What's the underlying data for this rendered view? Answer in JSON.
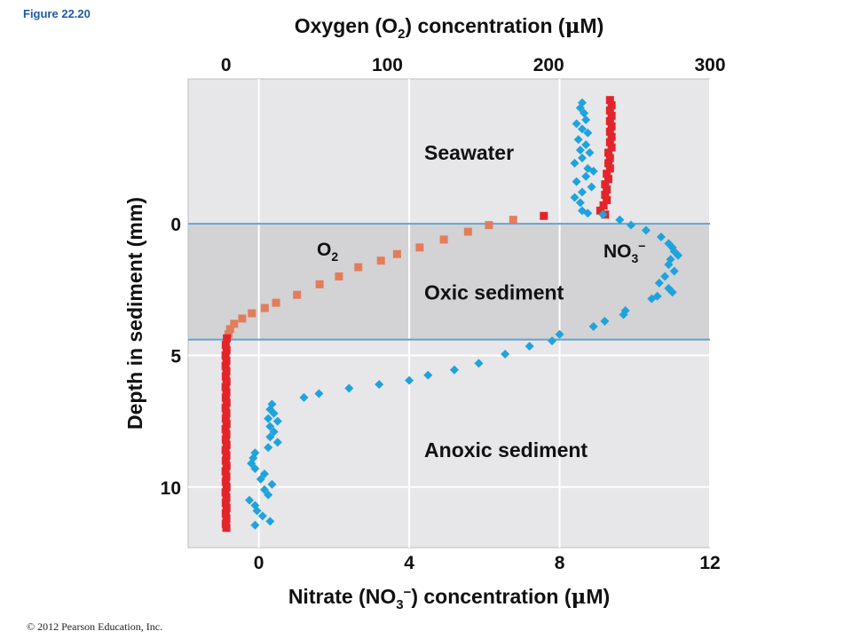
{
  "figure_label": "Figure 22.20",
  "copyright": "© 2012 Pearson Education, Inc.",
  "colors": {
    "o2": "#e3242b",
    "o2_transition": "#e27d5c",
    "nitrate": "#1fa3dc",
    "seawater_bg": "#e7e6e8",
    "oxic_bg": "#d3d2d4",
    "boundary_line": "#5fa4cd"
  },
  "chart_data": {
    "type": "scatter",
    "x_top_axis": {
      "label_main": "Oxygen (O",
      "label_sub": "2",
      "label_tail": ") concentration (",
      "label_mu": "μ",
      "label_unit": "M)",
      "range": [
        -23.5,
        300
      ],
      "ticks": [
        "0",
        "100",
        "200",
        "300"
      ]
    },
    "x_bottom_axis": {
      "label_main": "Nitrate (NO",
      "label_sub": "3",
      "label_sup": "−",
      "label_tail": ") concentration (",
      "label_mu": "μ",
      "label_unit": "M)",
      "range": [
        -1.88,
        12
      ],
      "ticks": [
        "0",
        "4",
        "8",
        "12"
      ]
    },
    "y_axis": {
      "label": "Depth in sediment (mm)",
      "range": [
        -5.5,
        12.3
      ],
      "inverted": true,
      "ticks": [
        "0",
        "5",
        "10"
      ]
    },
    "regions": [
      {
        "name": "Seawater",
        "label_depth": -2.7,
        "label_nitrate": 4.4
      },
      {
        "name": "Oxic sediment",
        "label_depth": 2.6,
        "label_nitrate": 4.4
      },
      {
        "name": "Anoxic sediment",
        "label_depth": 8.6,
        "label_nitrate": 4.4
      }
    ],
    "boundaries_depth": [
      0,
      4.4
    ],
    "series_labels": {
      "o2": {
        "main": "O",
        "sub": "2"
      },
      "no3": {
        "main": "NO",
        "sub": "3",
        "sup": "−"
      }
    },
    "o2_points": [
      [
        238,
        -4.7
      ],
      [
        239,
        -4.5
      ],
      [
        238,
        -4.3
      ],
      [
        239,
        -4.1
      ],
      [
        238,
        -3.9
      ],
      [
        239,
        -3.7
      ],
      [
        238,
        -3.5
      ],
      [
        239,
        -3.3
      ],
      [
        238,
        -3.1
      ],
      [
        239,
        -2.9
      ],
      [
        237,
        -2.7
      ],
      [
        238,
        -2.5
      ],
      [
        237,
        -2.3
      ],
      [
        238,
        -2.1
      ],
      [
        236,
        -1.9
      ],
      [
        237,
        -1.7
      ],
      [
        235,
        -1.5
      ],
      [
        236,
        -1.3
      ],
      [
        235,
        -1.1
      ],
      [
        236,
        -0.9
      ],
      [
        234,
        -0.7
      ],
      [
        232,
        -0.5
      ],
      [
        235,
        -0.35
      ],
      [
        197,
        -0.3
      ],
      [
        178,
        -0.15
      ],
      [
        163,
        0.05
      ],
      [
        150,
        0.3
      ],
      [
        135,
        0.6
      ],
      [
        120,
        0.9
      ],
      [
        106,
        1.15
      ],
      [
        96,
        1.4
      ],
      [
        82,
        1.65
      ],
      [
        70,
        2.0
      ],
      [
        58,
        2.3
      ],
      [
        44,
        2.7
      ],
      [
        31,
        3.0
      ],
      [
        24,
        3.2
      ],
      [
        16,
        3.4
      ],
      [
        10,
        3.6
      ],
      [
        5,
        3.8
      ],
      [
        2.5,
        4.0
      ],
      [
        1.5,
        4.2
      ],
      [
        0.5,
        4.35
      ],
      [
        -0.2,
        4.6
      ],
      [
        0.3,
        4.8
      ],
      [
        -0.3,
        5.0
      ],
      [
        0.2,
        5.2
      ],
      [
        -0.3,
        5.4
      ],
      [
        0.2,
        5.6
      ],
      [
        -0.2,
        5.8
      ],
      [
        0.3,
        6.0
      ],
      [
        -0.3,
        6.2
      ],
      [
        0.2,
        6.4
      ],
      [
        -0.2,
        6.6
      ],
      [
        0.3,
        6.8
      ],
      [
        -0.3,
        7.0
      ],
      [
        0.2,
        7.2
      ],
      [
        -0.2,
        7.4
      ],
      [
        0.3,
        7.6
      ],
      [
        -0.3,
        7.8
      ],
      [
        0.2,
        8.0
      ],
      [
        -0.2,
        8.2
      ],
      [
        0.3,
        8.4
      ],
      [
        -0.3,
        8.6
      ],
      [
        0.2,
        8.8
      ],
      [
        -0.2,
        9.0
      ],
      [
        0.3,
        9.2
      ],
      [
        -0.3,
        9.4
      ],
      [
        0.2,
        9.6
      ],
      [
        -0.2,
        9.8
      ],
      [
        0.3,
        10.0
      ],
      [
        -0.3,
        10.2
      ],
      [
        0.2,
        10.4
      ],
      [
        -0.2,
        10.6
      ],
      [
        0.3,
        10.8
      ],
      [
        -0.2,
        11.0
      ],
      [
        0.2,
        11.2
      ],
      [
        -0.2,
        11.4
      ],
      [
        0.2,
        11.55
      ]
    ],
    "no3_points": [
      [
        8.6,
        -4.6
      ],
      [
        8.55,
        -4.4
      ],
      [
        8.65,
        -4.2
      ],
      [
        8.7,
        -3.95
      ],
      [
        8.45,
        -3.8
      ],
      [
        8.6,
        -3.6
      ],
      [
        8.75,
        -3.45
      ],
      [
        8.5,
        -3.2
      ],
      [
        8.7,
        -3.0
      ],
      [
        8.55,
        -2.8
      ],
      [
        8.8,
        -2.7
      ],
      [
        8.6,
        -2.5
      ],
      [
        8.4,
        -2.3
      ],
      [
        8.75,
        -2.1
      ],
      [
        8.9,
        -2.0
      ],
      [
        8.7,
        -1.8
      ],
      [
        8.45,
        -1.6
      ],
      [
        8.85,
        -1.4
      ],
      [
        8.6,
        -1.2
      ],
      [
        8.4,
        -1.0
      ],
      [
        8.55,
        -0.8
      ],
      [
        8.6,
        -0.5
      ],
      [
        8.75,
        -0.4
      ],
      [
        9.15,
        -0.35
      ],
      [
        9.6,
        -0.15
      ],
      [
        9.9,
        0.05
      ],
      [
        10.3,
        0.25
      ],
      [
        10.7,
        0.5
      ],
      [
        10.9,
        0.75
      ],
      [
        11.0,
        0.9
      ],
      [
        11.05,
        1.05
      ],
      [
        11.15,
        1.2
      ],
      [
        10.95,
        1.35
      ],
      [
        10.9,
        1.55
      ],
      [
        11.05,
        1.8
      ],
      [
        10.8,
        2.0
      ],
      [
        10.65,
        2.25
      ],
      [
        10.9,
        2.45
      ],
      [
        11.0,
        2.6
      ],
      [
        10.6,
        2.75
      ],
      [
        10.45,
        2.85
      ],
      [
        9.75,
        3.3
      ],
      [
        9.7,
        3.45
      ],
      [
        9.2,
        3.7
      ],
      [
        8.9,
        3.9
      ],
      [
        8.0,
        4.2
      ],
      [
        7.8,
        4.45
      ],
      [
        7.2,
        4.65
      ],
      [
        6.55,
        4.95
      ],
      [
        5.85,
        5.3
      ],
      [
        5.2,
        5.55
      ],
      [
        4.5,
        5.75
      ],
      [
        4.0,
        5.95
      ],
      [
        3.2,
        6.1
      ],
      [
        2.4,
        6.25
      ],
      [
        1.6,
        6.45
      ],
      [
        1.2,
        6.6
      ],
      [
        0.35,
        6.85
      ],
      [
        0.3,
        7.05
      ],
      [
        0.4,
        7.2
      ],
      [
        0.25,
        7.4
      ],
      [
        0.5,
        7.5
      ],
      [
        0.3,
        7.7
      ],
      [
        0.4,
        7.9
      ],
      [
        0.3,
        8.1
      ],
      [
        0.5,
        8.3
      ],
      [
        0.25,
        8.5
      ],
      [
        -0.1,
        8.7
      ],
      [
        -0.15,
        8.9
      ],
      [
        -0.2,
        9.1
      ],
      [
        -0.1,
        9.3
      ],
      [
        0.15,
        9.5
      ],
      [
        0.05,
        9.7
      ],
      [
        0.35,
        9.9
      ],
      [
        0.15,
        10.1
      ],
      [
        0.25,
        10.3
      ],
      [
        -0.25,
        10.5
      ],
      [
        -0.1,
        10.7
      ],
      [
        -0.05,
        10.9
      ],
      [
        0.1,
        11.1
      ],
      [
        0.3,
        11.3
      ],
      [
        -0.1,
        11.45
      ]
    ]
  }
}
